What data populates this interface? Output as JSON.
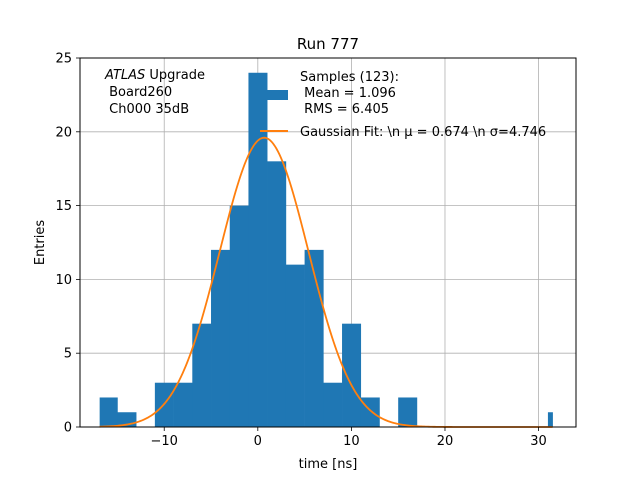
{
  "chart_data": {
    "type": "bar",
    "title": "Run 777",
    "xlabel": "time [ns]",
    "ylabel": "Entries",
    "xlim": [
      -19,
      34
    ],
    "ylim": [
      0,
      25
    ],
    "xticks": [
      -10,
      0,
      10,
      20,
      30
    ],
    "yticks": [
      0,
      5,
      10,
      15,
      20,
      25
    ],
    "xtick_labels": [
      "−10",
      "0",
      "10",
      "20",
      "30"
    ],
    "ytick_labels": [
      "0",
      "5",
      "10",
      "15",
      "20",
      "25"
    ],
    "grid": true,
    "legend_position": "top-right",
    "annotation": {
      "experiment": "ATLAS",
      "experiment_suffix": " Upgrade",
      "line2": " Board260",
      "line3": " Ch000 35dB"
    },
    "bin_edges": [
      -16.9,
      -15.0,
      -13.0,
      -11.0,
      -9.0,
      -7.0,
      -5.0,
      -3.0,
      -1.0,
      1.0,
      3.0,
      5.0,
      7.0,
      9.0,
      11.0,
      13.0,
      15.0,
      17.0,
      19.0,
      21.0,
      23.0,
      25.0,
      27.0,
      29.0,
      31.0
    ],
    "bin_edges_last": 31.5,
    "counts": [
      2,
      1,
      0,
      3,
      3,
      7,
      12,
      15,
      24,
      18,
      11,
      12,
      3,
      7,
      2,
      0,
      2,
      0,
      0,
      0,
      0,
      0,
      0,
      0,
      1
    ],
    "series": [
      {
        "name": "Samples (123):\n Mean = 1.096\n RMS = 6.405",
        "legend_lines": [
          "Samples (123):",
          " Mean = 1.096",
          " RMS = 6.405"
        ],
        "type": "histogram",
        "color": "#1f77b4",
        "sample_count": 123,
        "mean": 1.096,
        "rms": 6.405
      },
      {
        "name": "Gaussian Fit: \\n μ = 0.674 \\n σ=4.746",
        "legend_lines": [
          "Gaussian Fit: \\n μ = 0.674 \\n σ=4.746"
        ],
        "type": "line",
        "color": "#ff7f0e",
        "amplitude": 19.6,
        "mu": 0.674,
        "sigma": 4.746
      }
    ]
  }
}
